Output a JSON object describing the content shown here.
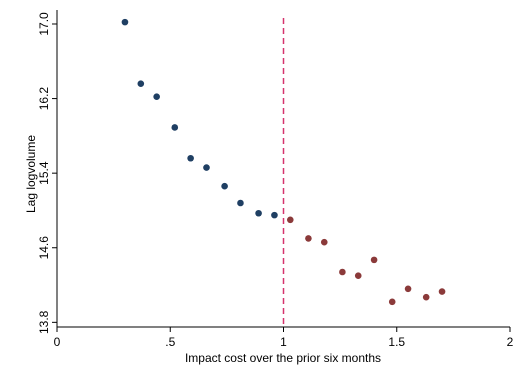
{
  "chart_data": {
    "type": "scatter",
    "title": "",
    "xlabel": "Impact cost over the prior six months",
    "ylabel": "Lag logvolume",
    "xlim": [
      0,
      2
    ],
    "ylim": [
      13.75,
      17.15
    ],
    "x_ticks": [
      0,
      0.5,
      1,
      1.5,
      2
    ],
    "x_tick_labels": [
      "0",
      ".5",
      "1",
      "1.5",
      "2"
    ],
    "y_ticks": [
      13.8,
      14.6,
      15.4,
      16.2,
      17.0
    ],
    "y_tick_labels": [
      "13.8",
      "14.6",
      "15.4",
      "16.2",
      "17.0"
    ],
    "grid": false,
    "legend": false,
    "reference_line": {
      "x": 1,
      "color": "#d6336c",
      "style": "dashed"
    },
    "series": [
      {
        "color": "#1f3f63",
        "x": [
          0.3,
          0.37,
          0.44,
          0.52,
          0.59,
          0.66,
          0.74,
          0.81,
          0.89,
          0.96
        ],
        "y": [
          17.02,
          16.36,
          16.22,
          15.89,
          15.56,
          15.46,
          15.26,
          15.08,
          14.97,
          14.95
        ]
      },
      {
        "color": "#8b3a3a",
        "x": [
          1.03,
          1.11,
          1.18,
          1.26,
          1.33,
          1.4,
          1.48,
          1.55,
          1.63,
          1.7
        ],
        "y": [
          14.9,
          14.7,
          14.66,
          14.34,
          14.3,
          14.47,
          14.02,
          14.16,
          14.07,
          14.13
        ]
      }
    ]
  }
}
